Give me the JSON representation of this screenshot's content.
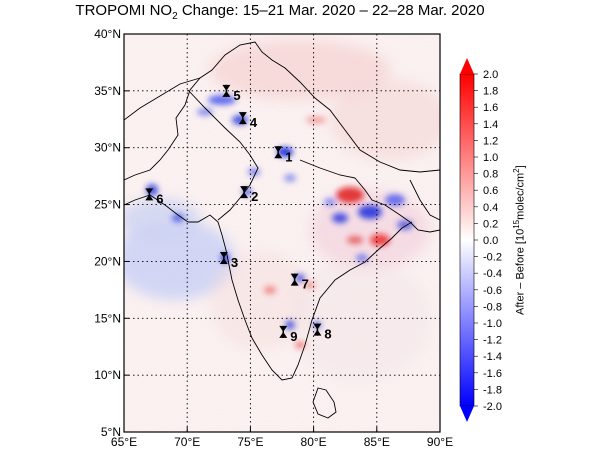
{
  "title": {
    "prefix": "TROPOMI NO",
    "subscript": "2",
    "suffix": " Change: 15–21 Mar. 2020 – 22–28 Mar. 2020"
  },
  "map": {
    "lon_range": [
      65,
      90
    ],
    "lat_range": [
      5,
      40
    ],
    "lon_ticks": [
      {
        "value": 65,
        "label": "65°E"
      },
      {
        "value": 70,
        "label": "70°E"
      },
      {
        "value": 75,
        "label": "75°E"
      },
      {
        "value": 80,
        "label": "80°E"
      },
      {
        "value": 85,
        "label": "85°E"
      },
      {
        "value": 90,
        "label": "90°E"
      }
    ],
    "lat_ticks": [
      {
        "value": 5,
        "label": "5°N"
      },
      {
        "value": 10,
        "label": "10°N"
      },
      {
        "value": 15,
        "label": "15°N"
      },
      {
        "value": 20,
        "label": "20°N"
      },
      {
        "value": 25,
        "label": "25°N"
      },
      {
        "value": 30,
        "label": "30°N"
      },
      {
        "value": 35,
        "label": "35°N"
      },
      {
        "value": 40,
        "label": "40°N"
      }
    ],
    "gridlines": "dotted",
    "cities": [
      {
        "label": "1",
        "lon": 77.2,
        "lat": 29.6
      },
      {
        "label": "2",
        "lon": 74.5,
        "lat": 26.1
      },
      {
        "label": "3",
        "lon": 72.9,
        "lat": 20.3
      },
      {
        "label": "4",
        "lon": 74.4,
        "lat": 32.6
      },
      {
        "label": "5",
        "lon": 73.1,
        "lat": 35.0
      },
      {
        "label": "6",
        "lon": 67.0,
        "lat": 25.9
      },
      {
        "label": "7",
        "lon": 78.5,
        "lat": 18.4
      },
      {
        "label": "8",
        "lon": 80.3,
        "lat": 14.0
      },
      {
        "label": "9",
        "lon": 77.6,
        "lat": 13.8
      }
    ]
  },
  "colorbar": {
    "min": -2.0,
    "max": 2.0,
    "ticks": [
      "2.0",
      "1.8",
      "1.6",
      "1.4",
      "1.2",
      "1.0",
      "0.8",
      "0.6",
      "0.4",
      "0.2",
      "0.0",
      "-0.2",
      "-0.4",
      "-0.6",
      "-0.8",
      "-1.0",
      "-1.2",
      "-1.4",
      "-1.6",
      "-1.8",
      "-2.0"
    ],
    "label_prefix": "After – Before [10",
    "label_exp": "15",
    "label_suffix": "molec/cm",
    "label_exp2": "2",
    "label_end": "]",
    "colors": {
      "high": "#ff0000",
      "zero": "#ffffff",
      "low": "#0000ff"
    }
  }
}
